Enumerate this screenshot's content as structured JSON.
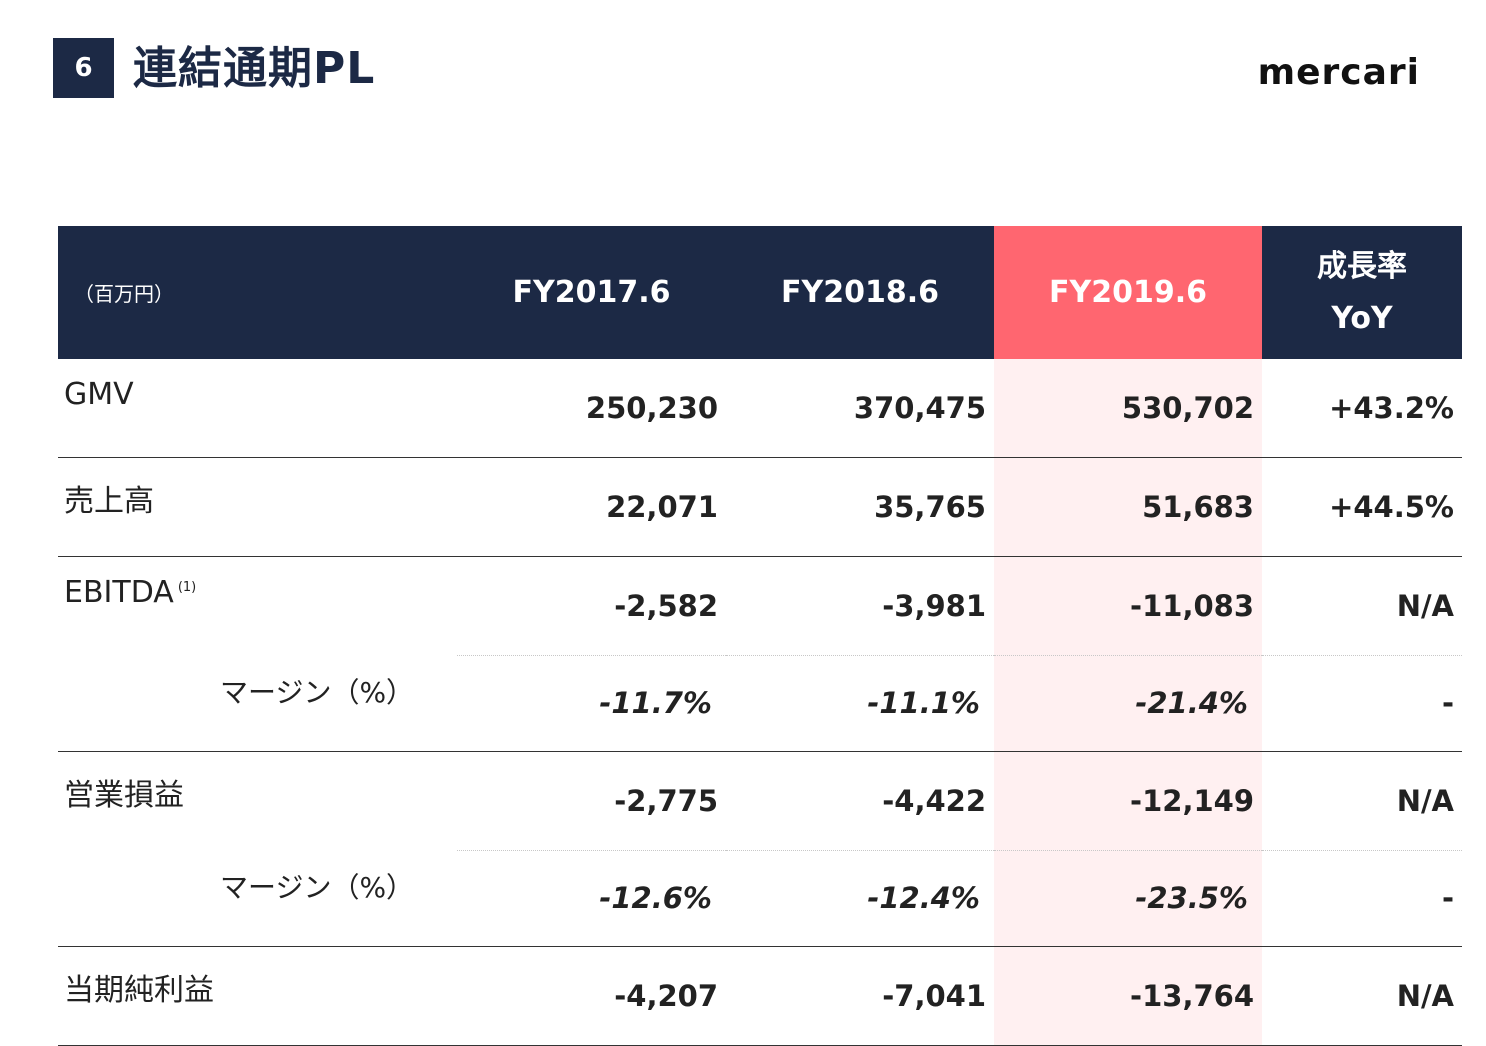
{
  "header": {
    "page_number": "6",
    "title": "連結通期PL",
    "logo_text": "mercari"
  },
  "table": {
    "unit_label": "（百万円）",
    "columns": [
      "FY2017.6",
      "FY2018.6",
      "FY2019.6"
    ],
    "yoy_label_line1": "成長率",
    "yoy_label_line2": "YoY",
    "highlight_color": "#ff6670",
    "header_color": "#1c2945",
    "rows": [
      {
        "label": "GMV",
        "values": [
          "250,230",
          "370,475",
          "530,702"
        ],
        "yoy": "+43.2%"
      },
      {
        "label": "売上高",
        "values": [
          "22,071",
          "35,765",
          "51,683"
        ],
        "yoy": "+44.5%"
      },
      {
        "label": "EBITDA",
        "note": "(1)",
        "values": [
          "-2,582",
          "-3,981",
          "-11,083"
        ],
        "yoy": "N/A"
      },
      {
        "label": "マージン（%）",
        "values": [
          "-11.7%",
          "-11.1%",
          "-21.4%"
        ],
        "yoy": "-"
      },
      {
        "label": "営業損益",
        "values": [
          "-2,775",
          "-4,422",
          "-12,149"
        ],
        "yoy": "N/A"
      },
      {
        "label": "マージン（%）",
        "values": [
          "-12.6%",
          "-12.4%",
          "-23.5%"
        ],
        "yoy": "-"
      },
      {
        "label": "当期純利益",
        "values": [
          "-4,207",
          "-7,041",
          "-13,764"
        ],
        "yoy": "N/A"
      }
    ]
  }
}
